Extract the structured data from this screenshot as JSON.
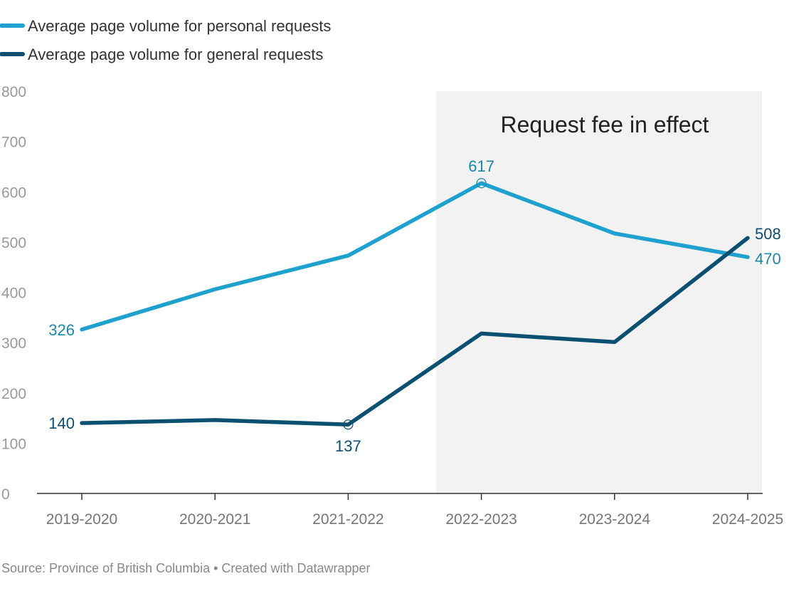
{
  "chart_data": {
    "type": "line",
    "categories": [
      "2019-2020",
      "2020-2021",
      "2021-2022",
      "2022-2023",
      "2023-2024",
      "2024-2025"
    ],
    "ylim": [
      0,
      800
    ],
    "yticks": [
      0,
      100,
      200,
      300,
      400,
      500,
      600,
      700,
      800
    ],
    "series": [
      {
        "name": "Average page volume for personal requests",
        "color": "#1fa1d0",
        "label_color": "#1a87ad",
        "values": [
          326,
          406,
          473,
          617,
          517,
          470
        ]
      },
      {
        "name": "Average page volume for general requests",
        "color": "#0b4f71",
        "label_color": "#0b4f71",
        "values": [
          140,
          146,
          137,
          318,
          301,
          508
        ]
      }
    ],
    "data_labels": [
      {
        "series": 0,
        "index": 0,
        "text": "326",
        "pos": "left"
      },
      {
        "series": 0,
        "index": 3,
        "text": "617",
        "pos": "above",
        "marker": true
      },
      {
        "series": 0,
        "index": 5,
        "text": "470",
        "pos": "right-below"
      },
      {
        "series": 1,
        "index": 0,
        "text": "140",
        "pos": "left"
      },
      {
        "series": 1,
        "index": 2,
        "text": "137",
        "pos": "below",
        "marker": true
      },
      {
        "series": 1,
        "index": 5,
        "text": "508",
        "pos": "right-above"
      }
    ],
    "shaded_region": {
      "from_index": 3,
      "to_index": 5,
      "label": "Request fee in effect",
      "color": "#f2f2f2"
    },
    "legend_placement": "top-left",
    "grid": false
  },
  "source": "Source: Province of British Columbia • Created with Datawrapper",
  "colors": {
    "axis": "#333333",
    "tick_y": "#9a9a9a",
    "tick_x": "#757575"
  }
}
